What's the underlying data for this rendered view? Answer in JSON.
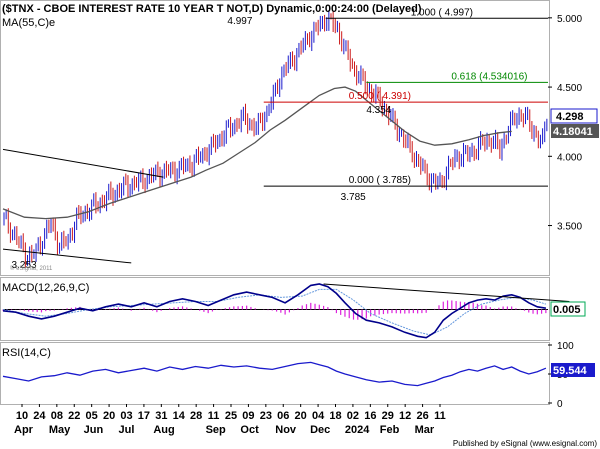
{
  "chart_data": {
    "type": "candlestick",
    "title": "($TNX - CBOE INTEREST RATE 10 YEAR T NOT,D) Dynamic,0:00:24:00 (Delayed)",
    "footer": "Published by eSignal (www.esignal.com)",
    "watermark": "© eSignal, 2011",
    "colors": {
      "up": "#1a1acc",
      "down": "#cc1a1a",
      "ma": "#555555",
      "macd": "#00008b",
      "signal": "#6699dd",
      "hist": "#dd22dd",
      "rsi": "#1a1acc",
      "fib_black": "#000000",
      "fib_green": "#008800",
      "fib_red": "#cc0000"
    },
    "price_panel": {
      "ma_label": "MA(55,C)e",
      "ylim": [
        3.15,
        5.1
      ],
      "yticks": [
        "5.000",
        "4.500",
        "4.000",
        "3.500"
      ],
      "last_price_label": "4.298",
      "ma_value_label": "4.18041",
      "ma_series": [
        [
          0,
          3.62
        ],
        [
          10,
          3.56
        ],
        [
          20,
          3.55
        ],
        [
          30,
          3.56
        ],
        [
          40,
          3.6
        ],
        [
          50,
          3.66
        ],
        [
          60,
          3.71
        ],
        [
          70,
          3.76
        ],
        [
          80,
          3.81
        ],
        [
          88,
          3.85
        ],
        [
          95,
          3.9
        ],
        [
          103,
          3.95
        ],
        [
          110,
          4.02
        ],
        [
          118,
          4.1
        ],
        [
          125,
          4.19
        ],
        [
          132,
          4.26
        ],
        [
          140,
          4.35
        ],
        [
          148,
          4.44
        ],
        [
          155,
          4.49
        ],
        [
          160,
          4.5
        ],
        [
          165,
          4.47
        ],
        [
          172,
          4.38
        ],
        [
          180,
          4.28
        ],
        [
          188,
          4.18
        ],
        [
          195,
          4.11
        ],
        [
          202,
          4.08
        ],
        [
          210,
          4.09
        ],
        [
          218,
          4.12
        ],
        [
          225,
          4.15
        ],
        [
          232,
          4.17
        ],
        [
          238,
          4.18
        ]
      ],
      "extremes": [
        {
          "label": "4.997",
          "x": 0,
          "y": 4.997
        },
        {
          "label": "4.354",
          "x": 0,
          "y": 4.354
        },
        {
          "label": "3.785",
          "x": 0,
          "y": 3.785
        },
        {
          "label": "3.253",
          "x": 0,
          "y": 3.253
        }
      ],
      "fib_levels": [
        {
          "label": "1.000 ( 4.997)",
          "value": 4.997,
          "color": "#000000"
        },
        {
          "label": "0.618 (4.534016)",
          "value": 4.534016,
          "color": "#008800"
        },
        {
          "label": "0.500 ( 4.391)",
          "value": 4.391,
          "color": "#cc0000"
        },
        {
          "label": "0.000 ( 3.785)",
          "value": 3.785,
          "color": "#000000"
        }
      ],
      "trendlines": [
        {
          "from": [
            0,
            4.05
          ],
          "to": [
            75,
            3.85
          ]
        },
        {
          "from": [
            0,
            3.33
          ],
          "to": [
            60,
            3.23
          ]
        }
      ]
    },
    "macd_panel": {
      "label": "MACD(12,26,9,C)",
      "value_label": "0.005",
      "ylim": [
        -0.22,
        0.22
      ],
      "series": [
        [
          0,
          -0.01
        ],
        [
          6,
          -0.02
        ],
        [
          12,
          -0.05
        ],
        [
          18,
          -0.07
        ],
        [
          24,
          -0.05
        ],
        [
          30,
          -0.02
        ],
        [
          36,
          0.01
        ],
        [
          42,
          -0.01
        ],
        [
          48,
          0.02
        ],
        [
          54,
          0.04
        ],
        [
          60,
          0.02
        ],
        [
          66,
          0.05
        ],
        [
          72,
          0.02
        ],
        [
          78,
          0.06
        ],
        [
          84,
          0.08
        ],
        [
          90,
          0.06
        ],
        [
          96,
          0.03
        ],
        [
          102,
          0.07
        ],
        [
          108,
          0.11
        ],
        [
          114,
          0.13
        ],
        [
          120,
          0.11
        ],
        [
          126,
          0.09
        ],
        [
          132,
          0.05
        ],
        [
          138,
          0.11
        ],
        [
          144,
          0.18
        ],
        [
          148,
          0.19
        ],
        [
          152,
          0.17
        ],
        [
          156,
          0.12
        ],
        [
          160,
          0.05
        ],
        [
          165,
          -0.03
        ],
        [
          170,
          -0.08
        ],
        [
          176,
          -0.1
        ],
        [
          182,
          -0.13
        ],
        [
          188,
          -0.17
        ],
        [
          194,
          -0.2
        ],
        [
          198,
          -0.21
        ],
        [
          202,
          -0.17
        ],
        [
          206,
          -0.08
        ],
        [
          210,
          -0.03
        ],
        [
          214,
          0.01
        ],
        [
          218,
          0.05
        ],
        [
          222,
          0.07
        ],
        [
          226,
          0.08
        ],
        [
          230,
          0.07
        ],
        [
          234,
          0.1
        ],
        [
          238,
          0.11
        ],
        [
          242,
          0.09
        ],
        [
          246,
          0.05
        ],
        [
          250,
          0.02
        ],
        [
          254,
          0.01
        ]
      ],
      "signal": [
        [
          0,
          0.0
        ],
        [
          10,
          -0.03
        ],
        [
          20,
          -0.05
        ],
        [
          30,
          -0.03
        ],
        [
          40,
          0.0
        ],
        [
          50,
          0.02
        ],
        [
          60,
          0.03
        ],
        [
          70,
          0.04
        ],
        [
          80,
          0.05
        ],
        [
          90,
          0.06
        ],
        [
          100,
          0.06
        ],
        [
          110,
          0.09
        ],
        [
          120,
          0.11
        ],
        [
          130,
          0.09
        ],
        [
          140,
          0.1
        ],
        [
          148,
          0.15
        ],
        [
          156,
          0.15
        ],
        [
          164,
          0.07
        ],
        [
          172,
          -0.03
        ],
        [
          182,
          -0.1
        ],
        [
          192,
          -0.16
        ],
        [
          200,
          -0.19
        ],
        [
          208,
          -0.13
        ],
        [
          216,
          -0.03
        ],
        [
          224,
          0.04
        ],
        [
          232,
          0.07
        ],
        [
          240,
          0.09
        ],
        [
          248,
          0.07
        ],
        [
          254,
          0.04
        ]
      ],
      "trendline": {
        "from": [
          150,
          0.19
        ],
        "to": [
          265,
          0.06
        ]
      }
    },
    "rsi_panel": {
      "label": "RSI(14,C)",
      "value_label": "59.544",
      "ylim": [
        0,
        100
      ],
      "yticks": [
        "100",
        "50",
        "0"
      ],
      "series": [
        [
          0,
          46
        ],
        [
          6,
          42
        ],
        [
          12,
          38
        ],
        [
          18,
          45
        ],
        [
          24,
          47
        ],
        [
          30,
          52
        ],
        [
          36,
          48
        ],
        [
          42,
          55
        ],
        [
          48,
          58
        ],
        [
          54,
          52
        ],
        [
          60,
          56
        ],
        [
          66,
          60
        ],
        [
          72,
          55
        ],
        [
          78,
          62
        ],
        [
          84,
          58
        ],
        [
          90,
          63
        ],
        [
          96,
          60
        ],
        [
          102,
          65
        ],
        [
          108,
          62
        ],
        [
          114,
          64
        ],
        [
          120,
          60
        ],
        [
          126,
          58
        ],
        [
          132,
          63
        ],
        [
          138,
          68
        ],
        [
          144,
          70
        ],
        [
          148,
          66
        ],
        [
          152,
          62
        ],
        [
          156,
          55
        ],
        [
          160,
          50
        ],
        [
          165,
          45
        ],
        [
          170,
          40
        ],
        [
          176,
          36
        ],
        [
          182,
          38
        ],
        [
          188,
          32
        ],
        [
          194,
          30
        ],
        [
          198,
          34
        ],
        [
          202,
          38
        ],
        [
          206,
          44
        ],
        [
          210,
          48
        ],
        [
          214,
          54
        ],
        [
          218,
          58
        ],
        [
          222,
          55
        ],
        [
          226,
          60
        ],
        [
          230,
          64
        ],
        [
          234,
          58
        ],
        [
          238,
          62
        ],
        [
          242,
          55
        ],
        [
          246,
          50
        ],
        [
          250,
          54
        ],
        [
          254,
          60
        ]
      ]
    },
    "x_axis": {
      "day_labels": [
        "10",
        "24",
        "08",
        "22",
        "05",
        "20",
        "03",
        "17",
        "31",
        "14",
        "28",
        "11",
        "25",
        "09",
        "23",
        "06",
        "20",
        "04",
        "18",
        "02",
        "16",
        "29",
        "12",
        "26",
        "11"
      ],
      "month_labels": [
        {
          "label": "Apr",
          "index": 0
        },
        {
          "label": "May",
          "index": 2
        },
        {
          "label": "Jun",
          "index": 4
        },
        {
          "label": "Jul",
          "index": 6
        },
        {
          "label": "Aug",
          "index": 8
        },
        {
          "label": "Sep",
          "index": 11
        },
        {
          "label": "Oct",
          "index": 13
        },
        {
          "label": "Nov",
          "index": 15
        },
        {
          "label": "Dec",
          "index": 17
        },
        {
          "label": "2024",
          "index": 19
        },
        {
          "label": "Feb",
          "index": 21
        },
        {
          "label": "Mar",
          "index": 23
        }
      ]
    }
  }
}
